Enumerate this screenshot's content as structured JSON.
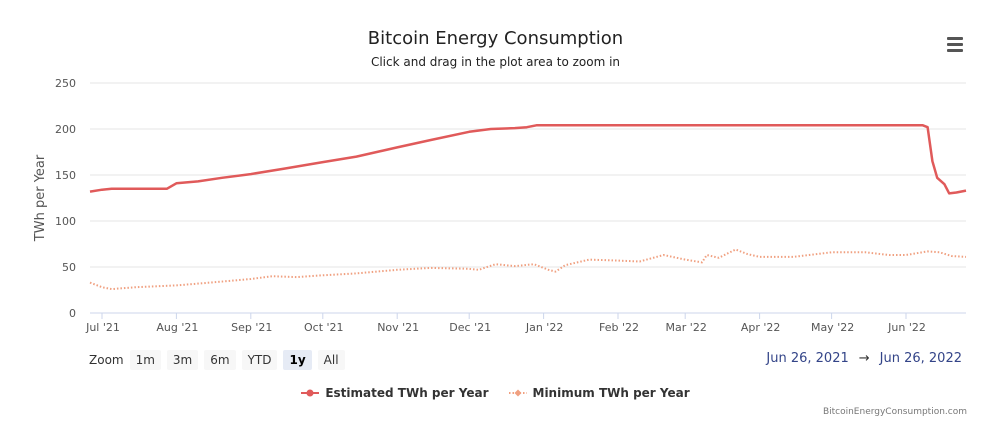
{
  "chart_data": {
    "type": "line",
    "title": "Bitcoin Energy Consumption",
    "subtitle": "Click and drag in the plot area to zoom in",
    "ylabel": "TWh per Year",
    "xlabel": "",
    "ylim": [
      0,
      250
    ],
    "yticks": [
      0,
      50,
      100,
      150,
      200,
      250
    ],
    "xlim": [
      "2021-06-26",
      "2022-06-26"
    ],
    "xticks": [
      {
        "date": "2021-07-01",
        "label": "Jul '21"
      },
      {
        "date": "2021-08-01",
        "label": "Aug '21"
      },
      {
        "date": "2021-09-01",
        "label": "Sep '21"
      },
      {
        "date": "2021-10-01",
        "label": "Oct '21"
      },
      {
        "date": "2021-11-01",
        "label": "Nov '21"
      },
      {
        "date": "2021-12-01",
        "label": "Dec '21"
      },
      {
        "date": "2022-01-01",
        "label": "Jan '22"
      },
      {
        "date": "2022-02-01",
        "label": "Feb '22"
      },
      {
        "date": "2022-03-01",
        "label": "Mar '22"
      },
      {
        "date": "2022-04-01",
        "label": "Apr '22"
      },
      {
        "date": "2022-05-01",
        "label": "May '22"
      },
      {
        "date": "2022-06-01",
        "label": "Jun '22"
      }
    ],
    "grid": true,
    "legend_position": "bottom-center",
    "series": [
      {
        "name": "Estimated TWh per Year",
        "color": "#e05a5a",
        "style": "solid",
        "points": [
          [
            "2021-06-26",
            132
          ],
          [
            "2021-07-01",
            134
          ],
          [
            "2021-07-05",
            135
          ],
          [
            "2021-07-20",
            135
          ],
          [
            "2021-07-28",
            135
          ],
          [
            "2021-08-01",
            141
          ],
          [
            "2021-08-10",
            143
          ],
          [
            "2021-08-20",
            147
          ],
          [
            "2021-09-01",
            151
          ],
          [
            "2021-09-15",
            157
          ],
          [
            "2021-10-01",
            164
          ],
          [
            "2021-10-15",
            170
          ],
          [
            "2021-11-01",
            180
          ],
          [
            "2021-11-15",
            188
          ],
          [
            "2021-12-01",
            197
          ],
          [
            "2021-12-10",
            200
          ],
          [
            "2021-12-20",
            201
          ],
          [
            "2021-12-25",
            202
          ],
          [
            "2021-12-29",
            204
          ],
          [
            "2022-01-15",
            204
          ],
          [
            "2022-03-01",
            204
          ],
          [
            "2022-05-01",
            204
          ],
          [
            "2022-06-08",
            204
          ],
          [
            "2022-06-10",
            202
          ],
          [
            "2022-06-12",
            165
          ],
          [
            "2022-06-14",
            147
          ],
          [
            "2022-06-17",
            140
          ],
          [
            "2022-06-19",
            130
          ],
          [
            "2022-06-22",
            131
          ],
          [
            "2022-06-26",
            133
          ]
        ]
      },
      {
        "name": "Minimum TWh per Year",
        "color": "#f0a080",
        "style": "dotted",
        "points": [
          [
            "2021-06-26",
            33
          ],
          [
            "2021-07-01",
            28
          ],
          [
            "2021-07-05",
            26
          ],
          [
            "2021-07-15",
            28
          ],
          [
            "2021-08-01",
            30
          ],
          [
            "2021-08-15",
            33
          ],
          [
            "2021-09-01",
            37
          ],
          [
            "2021-09-10",
            40
          ],
          [
            "2021-09-20",
            39
          ],
          [
            "2021-10-01",
            41
          ],
          [
            "2021-10-15",
            43
          ],
          [
            "2021-11-01",
            47
          ],
          [
            "2021-11-15",
            49
          ],
          [
            "2021-12-01",
            48
          ],
          [
            "2021-12-05",
            47
          ],
          [
            "2021-12-12",
            53
          ],
          [
            "2021-12-20",
            51
          ],
          [
            "2021-12-28",
            53
          ],
          [
            "2022-01-03",
            47
          ],
          [
            "2022-01-06",
            45
          ],
          [
            "2022-01-10",
            52
          ],
          [
            "2022-01-20",
            58
          ],
          [
            "2022-02-01",
            57
          ],
          [
            "2022-02-10",
            56
          ],
          [
            "2022-02-20",
            63
          ],
          [
            "2022-03-01",
            58
          ],
          [
            "2022-03-08",
            55
          ],
          [
            "2022-03-10",
            63
          ],
          [
            "2022-03-15",
            60
          ],
          [
            "2022-03-22",
            69
          ],
          [
            "2022-03-27",
            64
          ],
          [
            "2022-04-01",
            61
          ],
          [
            "2022-04-15",
            61
          ],
          [
            "2022-05-01",
            66
          ],
          [
            "2022-05-15",
            66
          ],
          [
            "2022-05-25",
            63
          ],
          [
            "2022-06-01",
            63
          ],
          [
            "2022-06-10",
            67
          ],
          [
            "2022-06-15",
            66
          ],
          [
            "2022-06-20",
            62
          ],
          [
            "2022-06-26",
            61
          ]
        ]
      }
    ]
  },
  "menu": {
    "icon": "hamburger-menu-icon"
  },
  "zoom": {
    "label": "Zoom",
    "buttons": [
      "1m",
      "3m",
      "6m",
      "YTD",
      "1y",
      "All"
    ],
    "selected": "1y"
  },
  "range": {
    "from": "Jun 26, 2021",
    "arrow": "→",
    "to": "Jun 26, 2022"
  },
  "credits": "BitcoinEnergyConsumption.com"
}
